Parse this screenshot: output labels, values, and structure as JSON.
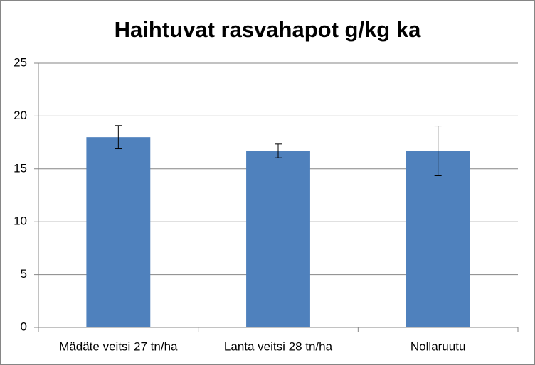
{
  "chart_data": {
    "type": "bar",
    "title": "Haihtuvat rasvahapot g/kg ka",
    "categories": [
      "Mädäte veitsi 27 tn/ha",
      "Lanta veitsi 28 tn/ha",
      "Nollaruutu"
    ],
    "values": [
      18.0,
      16.7,
      16.7
    ],
    "errors": [
      1.1,
      0.65,
      2.35
    ],
    "color": "#4f81bd",
    "ylim": [
      0,
      25
    ],
    "yticks": [
      0,
      5,
      10,
      15,
      20,
      25
    ],
    "grid": true
  }
}
